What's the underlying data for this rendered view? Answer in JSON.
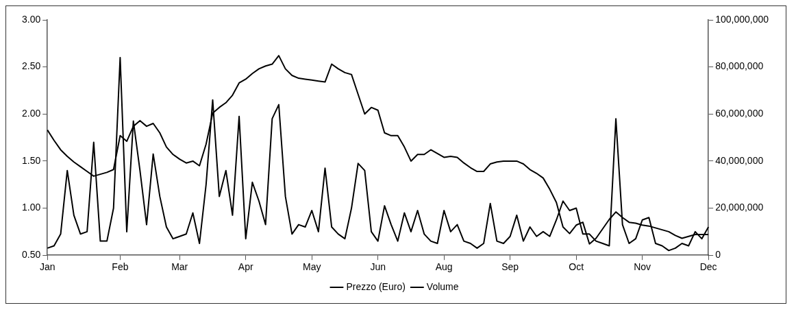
{
  "chart_data": {
    "type": "line",
    "legend": "bottom",
    "grid": false,
    "marker": "none",
    "line_style": "solid",
    "categories": [
      "Jan",
      null,
      null,
      null,
      null,
      null,
      null,
      null,
      null,
      null,
      null,
      "Feb",
      null,
      null,
      null,
      null,
      null,
      null,
      null,
      null,
      "Mar",
      null,
      null,
      null,
      null,
      null,
      null,
      null,
      null,
      null,
      "Apr",
      null,
      null,
      null,
      null,
      null,
      null,
      null,
      null,
      null,
      "May",
      null,
      null,
      null,
      null,
      null,
      null,
      null,
      null,
      null,
      "Jun",
      null,
      null,
      null,
      null,
      null,
      null,
      null,
      null,
      null,
      "Aug",
      null,
      null,
      null,
      null,
      null,
      null,
      null,
      null,
      null,
      "Sep",
      null,
      null,
      null,
      null,
      null,
      null,
      null,
      null,
      null,
      "Oct",
      null,
      null,
      null,
      null,
      null,
      null,
      null,
      null,
      null,
      "Nov",
      null,
      null,
      null,
      null,
      null,
      null,
      null,
      null,
      null,
      "Dec"
    ],
    "ylim": [
      0.5,
      3
    ],
    "yticks": [
      {
        "value": 0.5,
        "label": "0.50"
      },
      {
        "value": 1,
        "label": "1.00"
      },
      {
        "value": 1.5,
        "label": "1.50"
      },
      {
        "value": 2,
        "label": "2.00"
      },
      {
        "value": 2.5,
        "label": "2.50"
      },
      {
        "value": 3,
        "label": "3.00"
      }
    ],
    "y2lim": [
      0,
      100000000
    ],
    "y2ticks": [
      0,
      {
        "value": 20000000,
        "label": "20,000,000"
      },
      {
        "value": 40000000,
        "label": "40,000,000"
      },
      {
        "value": 60000000,
        "label": "60,000,000"
      },
      {
        "value": 80000000,
        "label": "80,000,000"
      },
      {
        "value": 100000000,
        "label": "100,000,000"
      }
    ],
    "series": [
      {
        "name": "Prezzo (Euro)",
        "color": "#000000",
        "values": [
          1.83,
          1.72,
          1.62,
          1.55,
          1.49,
          1.44,
          1.39,
          1.34,
          1.36,
          1.38,
          1.41,
          1.77,
          1.71,
          1.87,
          1.93,
          1.87,
          1.9,
          1.8,
          1.65,
          1.57,
          1.52,
          1.48,
          1.5,
          1.45,
          1.68,
          2.01,
          2.07,
          2.12,
          2.2,
          2.33,
          2.37,
          2.43,
          2.48,
          2.51,
          2.53,
          2.62,
          2.48,
          2.41,
          2.38,
          2.37,
          2.36,
          2.35,
          2.34,
          2.53,
          2.48,
          2.44,
          2.42,
          2.21,
          2.0,
          2.07,
          2.04,
          1.8,
          1.77,
          1.77,
          1.65,
          1.5,
          1.57,
          1.57,
          1.62,
          1.58,
          1.54,
          1.55,
          1.54,
          1.48,
          1.43,
          1.39,
          1.39,
          1.47,
          1.49,
          1.5,
          1.5,
          1.5,
          1.47,
          1.41,
          1.37,
          1.32,
          1.2,
          1.06,
          0.8,
          0.73,
          0.82,
          0.85,
          0.62,
          0.68,
          0.78,
          0.88,
          0.96,
          0.9,
          0.85,
          0.84,
          0.82,
          0.81,
          0.79,
          0.77,
          0.75,
          0.71,
          0.68,
          0.7,
          0.72,
          0.72,
          0.72
        ]
      },
      {
        "name": "Volume",
        "color": "#000000",
        "axis": "y2",
        "values": [
          3000000,
          4000000,
          9000000,
          36000000,
          17000000,
          9000000,
          10000000,
          48000000,
          6000000,
          6000000,
          20000000,
          84000000,
          10000000,
          57000000,
          36000000,
          13000000,
          43000000,
          25000000,
          12000000,
          7000000,
          8000000,
          9000000,
          18000000,
          5000000,
          30000000,
          66000000,
          25000000,
          36000000,
          17000000,
          59000000,
          7000000,
          31000000,
          23000000,
          13000000,
          58000000,
          64000000,
          25000000,
          9000000,
          13000000,
          12000000,
          19000000,
          10000000,
          37000000,
          12000000,
          9000000,
          7000000,
          20000000,
          39000000,
          36000000,
          10000000,
          6000000,
          21000000,
          13000000,
          6000000,
          18000000,
          10000000,
          19000000,
          9000000,
          6000000,
          5000000,
          19000000,
          10000000,
          13000000,
          6000000,
          5000000,
          3000000,
          5000000,
          22000000,
          6000000,
          5000000,
          8000000,
          17000000,
          6000000,
          12000000,
          8000000,
          10000000,
          8000000,
          15000000,
          23000000,
          19000000,
          20000000,
          9000000,
          9000000,
          6000000,
          5000000,
          4000000,
          58000000,
          13000000,
          5000000,
          7000000,
          15000000,
          16000000,
          5000000,
          4000000,
          2000000,
          3000000,
          5000000,
          4000000,
          10000000,
          7000000,
          12000000
        ]
      }
    ]
  }
}
